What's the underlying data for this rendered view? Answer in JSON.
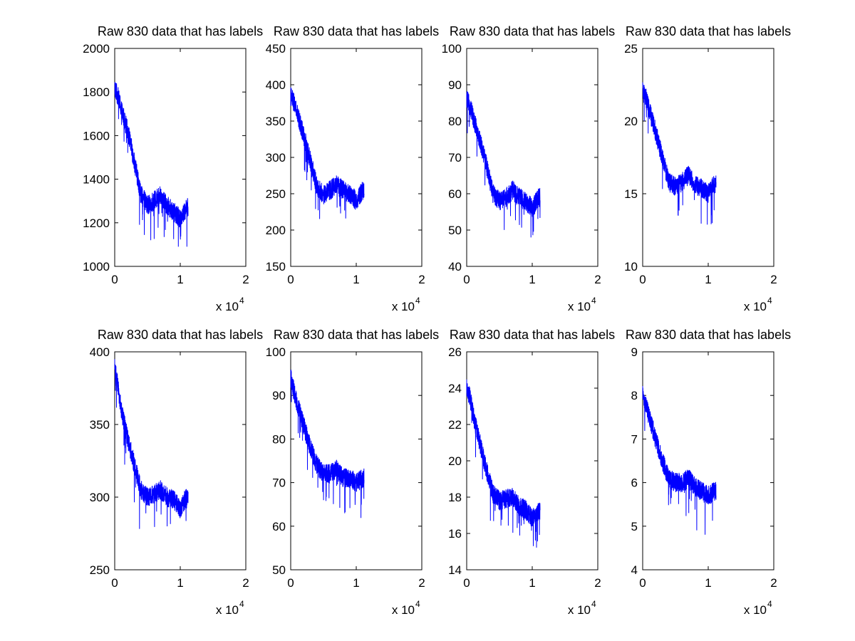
{
  "figure": {
    "background": "#ffffff",
    "line_color": "#0000ff"
  },
  "chart_data": [
    {
      "type": "line",
      "title": "Raw 830 data that has labels",
      "xlim": [
        0,
        2
      ],
      "ylim": [
        1000,
        2000
      ],
      "xticks": [
        "0",
        "1",
        "2"
      ],
      "yticks": [
        "1000",
        "1200",
        "1400",
        "1600",
        "1800",
        "2000"
      ],
      "x_exponent": {
        "base": "x 10",
        "power": "4"
      },
      "x_data_range": [
        0,
        1.12
      ],
      "series": [
        {
          "color": "#0000ff",
          "x": [
            0,
            0.05,
            0.1,
            0.2,
            0.3,
            0.4,
            0.5,
            0.6,
            0.7,
            0.8,
            0.9,
            1.0,
            1.1
          ],
          "y": [
            1820,
            1780,
            1720,
            1620,
            1480,
            1330,
            1280,
            1300,
            1330,
            1280,
            1250,
            1220,
            1270
          ]
        }
      ]
    },
    {
      "type": "line",
      "title": "Raw 830 data that has labels",
      "xlim": [
        0,
        2
      ],
      "ylim": [
        150,
        450
      ],
      "xticks": [
        "0",
        "1",
        "2"
      ],
      "yticks": [
        "150",
        "200",
        "250",
        "300",
        "350",
        "400",
        "450"
      ],
      "x_exponent": {
        "base": "x 10",
        "power": "4"
      },
      "x_data_range": [
        0,
        1.12
      ],
      "series": [
        {
          "color": "#0000ff",
          "x": [
            0,
            0.05,
            0.1,
            0.2,
            0.3,
            0.4,
            0.5,
            0.6,
            0.7,
            0.8,
            0.9,
            1.0,
            1.1
          ],
          "y": [
            385,
            375,
            360,
            330,
            295,
            260,
            248,
            255,
            262,
            255,
            250,
            240,
            255
          ]
        }
      ]
    },
    {
      "type": "line",
      "title": "Raw 830 data that has labels",
      "xlim": [
        0,
        2
      ],
      "ylim": [
        40,
        100
      ],
      "xticks": [
        "0",
        "1",
        "2"
      ],
      "yticks": [
        "40",
        "50",
        "60",
        "70",
        "80",
        "90",
        "100"
      ],
      "x_exponent": {
        "base": "x 10",
        "power": "4"
      },
      "x_data_range": [
        0,
        1.12
      ],
      "series": [
        {
          "color": "#0000ff",
          "x": [
            0,
            0.05,
            0.1,
            0.2,
            0.3,
            0.4,
            0.5,
            0.6,
            0.7,
            0.8,
            0.9,
            1.0,
            1.1
          ],
          "y": [
            86,
            84,
            81,
            75,
            68,
            60,
            58,
            59,
            61,
            59,
            58,
            56,
            59
          ]
        }
      ]
    },
    {
      "type": "line",
      "title": "Raw 830 data that has labels",
      "xlim": [
        0,
        2
      ],
      "ylim": [
        10,
        25
      ],
      "xticks": [
        "0",
        "1",
        "2"
      ],
      "yticks": [
        "10",
        "15",
        "20",
        "25"
      ],
      "x_exponent": {
        "base": "x 10",
        "power": "4"
      },
      "x_data_range": [
        0,
        1.12
      ],
      "series": [
        {
          "color": "#0000ff",
          "x": [
            0,
            0.05,
            0.1,
            0.2,
            0.3,
            0.4,
            0.5,
            0.6,
            0.7,
            0.8,
            0.9,
            1.0,
            1.1
          ],
          "y": [
            22,
            21.6,
            20.8,
            19.2,
            17.5,
            15.8,
            15.5,
            15.8,
            16.3,
            15.6,
            15.4,
            15,
            15.7
          ]
        }
      ]
    },
    {
      "type": "line",
      "title": "Raw 830 data that has labels",
      "xlim": [
        0,
        2
      ],
      "ylim": [
        250,
        400
      ],
      "xticks": [
        "0",
        "1",
        "2"
      ],
      "yticks": [
        "250",
        "300",
        "350",
        "400"
      ],
      "x_exponent": {
        "base": "x 10",
        "power": "4"
      },
      "x_data_range": [
        0,
        1.12
      ],
      "series": [
        {
          "color": "#0000ff",
          "x": [
            0,
            0.05,
            0.1,
            0.2,
            0.3,
            0.4,
            0.5,
            0.6,
            0.7,
            0.8,
            0.9,
            1.0,
            1.1
          ],
          "y": [
            390,
            375,
            360,
            340,
            322,
            305,
            300,
            302,
            305,
            300,
            298,
            292,
            300
          ]
        }
      ]
    },
    {
      "type": "line",
      "title": "Raw 830 data that has labels",
      "xlim": [
        0,
        2
      ],
      "ylim": [
        50,
        100
      ],
      "xticks": [
        "0",
        "1",
        "2"
      ],
      "yticks": [
        "50",
        "60",
        "70",
        "80",
        "90",
        "100"
      ],
      "x_exponent": {
        "base": "x 10",
        "power": "4"
      },
      "x_data_range": [
        0,
        1.12
      ],
      "series": [
        {
          "color": "#0000ff",
          "x": [
            0,
            0.05,
            0.1,
            0.2,
            0.3,
            0.4,
            0.5,
            0.6,
            0.7,
            0.8,
            0.9,
            1.0,
            1.1
          ],
          "y": [
            94,
            91,
            88,
            83,
            78,
            74,
            72,
            72,
            73,
            71,
            71,
            70,
            71
          ]
        }
      ]
    },
    {
      "type": "line",
      "title": "Raw 830 data that has labels",
      "xlim": [
        0,
        2
      ],
      "ylim": [
        14,
        26
      ],
      "xticks": [
        "0",
        "1",
        "2"
      ],
      "yticks": [
        "14",
        "16",
        "18",
        "20",
        "22",
        "24",
        "26"
      ],
      "x_exponent": {
        "base": "x 10",
        "power": "4"
      },
      "x_data_range": [
        0,
        1.12
      ],
      "series": [
        {
          "color": "#0000ff",
          "x": [
            0,
            0.05,
            0.1,
            0.2,
            0.3,
            0.4,
            0.5,
            0.6,
            0.7,
            0.8,
            0.9,
            1.0,
            1.1
          ],
          "y": [
            24,
            23.5,
            22.5,
            21,
            19.5,
            18.2,
            17.8,
            17.9,
            18,
            17.5,
            17.3,
            16.8,
            17.2
          ]
        }
      ]
    },
    {
      "type": "line",
      "title": "Raw 830 data that has labels",
      "xlim": [
        0,
        2
      ],
      "ylim": [
        4,
        9
      ],
      "xticks": [
        "0",
        "1",
        "2"
      ],
      "yticks": [
        "4",
        "5",
        "6",
        "7",
        "8",
        "9"
      ],
      "x_exponent": {
        "base": "x 10",
        "power": "4"
      },
      "x_data_range": [
        0,
        1.12
      ],
      "series": [
        {
          "color": "#0000ff",
          "x": [
            0,
            0.05,
            0.1,
            0.2,
            0.3,
            0.4,
            0.5,
            0.6,
            0.7,
            0.8,
            0.9,
            1.0,
            1.1
          ],
          "y": [
            8.0,
            7.8,
            7.5,
            7.0,
            6.5,
            6.1,
            6.0,
            6.0,
            6.1,
            5.9,
            5.8,
            5.7,
            5.8
          ]
        }
      ]
    }
  ]
}
